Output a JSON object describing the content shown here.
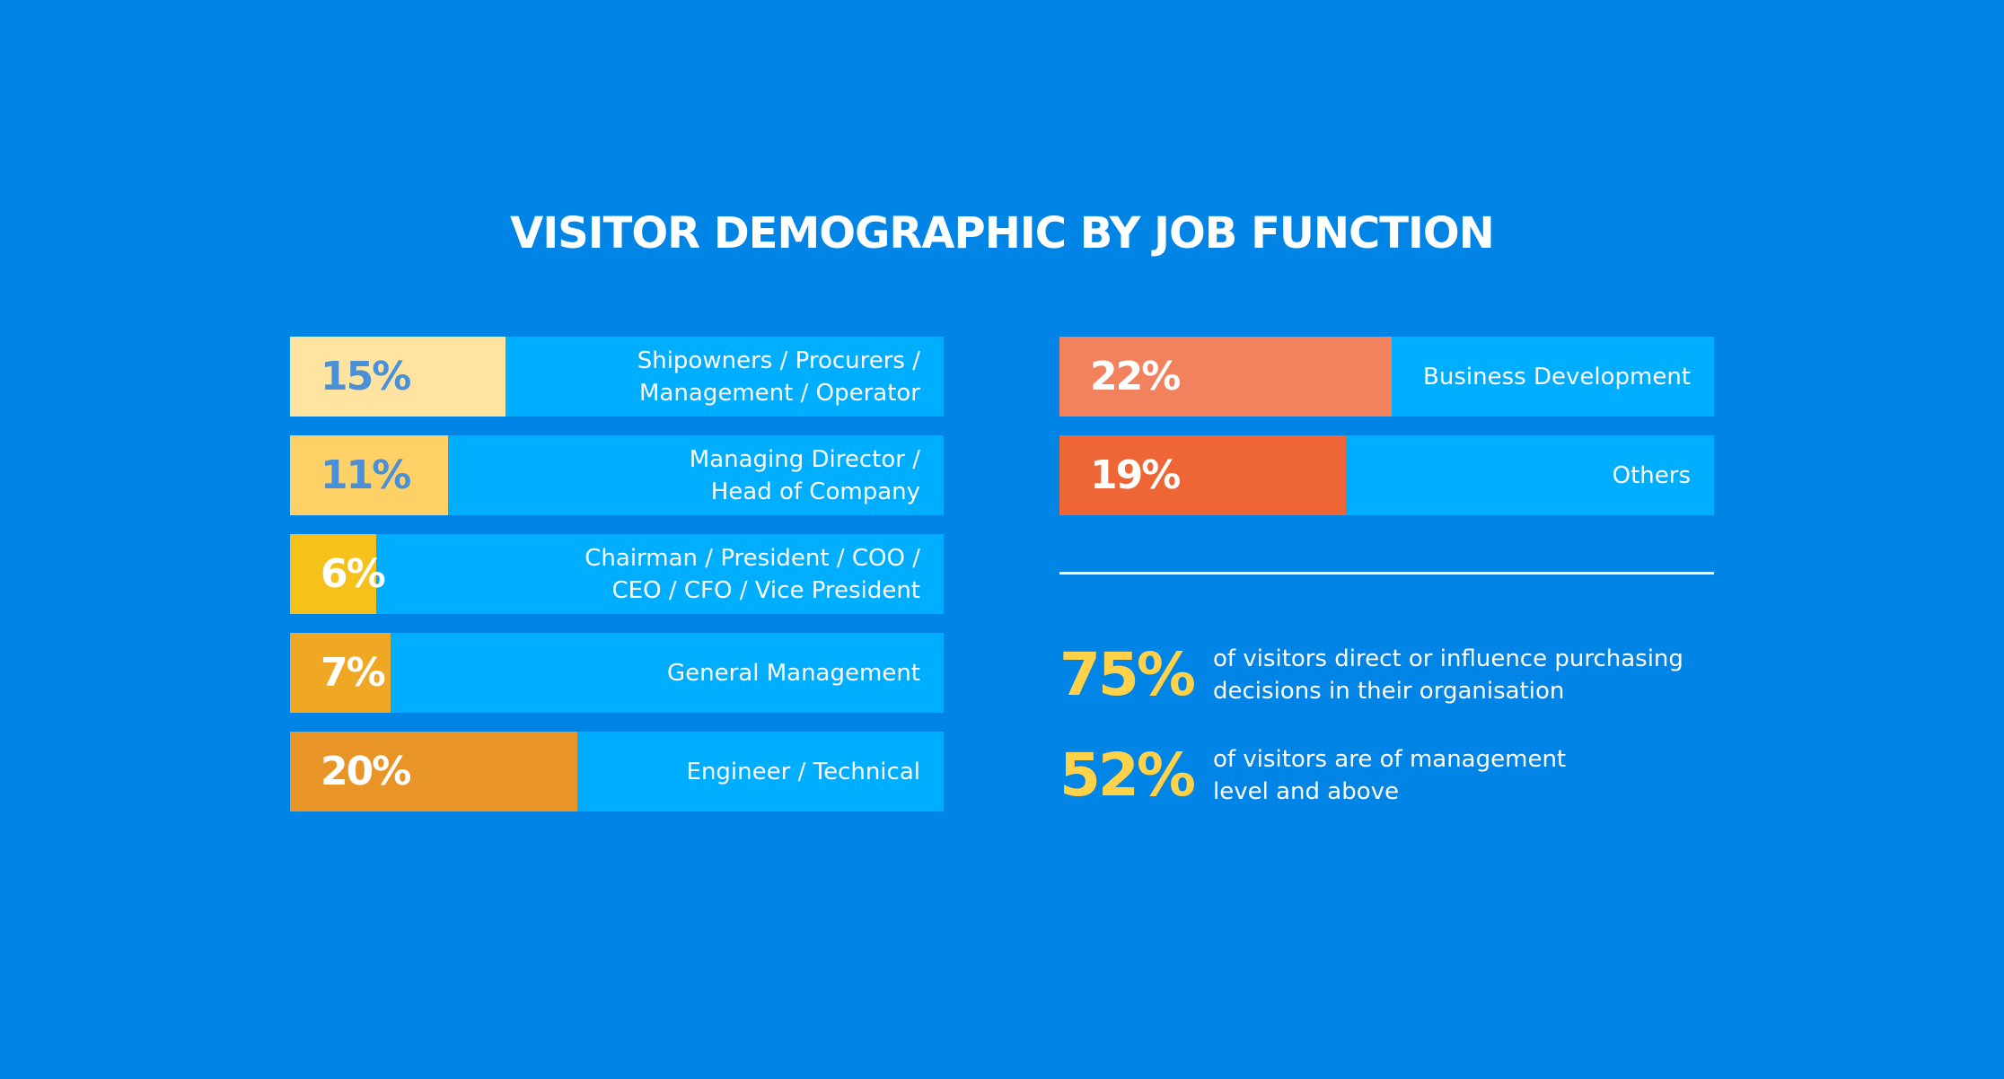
{
  "title": "VISITOR DEMOGRAPHIC BY JOB FUNCTION",
  "colors": {
    "background": "#0084E6",
    "bar_track": "#00AEFF",
    "stat_value": "#FFD24A",
    "text": "#FFFFFF"
  },
  "chart_data": {
    "type": "bar",
    "title": "VISITOR DEMOGRAPHIC BY JOB FUNCTION",
    "orientation": "horizontal",
    "unit": "%",
    "xlim": [
      0,
      100
    ],
    "categories": [
      "Shipowners / Procurers / Management / Operator",
      "Managing Director / Head of Company",
      "Chairman / President / COO / CEO / CFO / Vice President",
      "General Management",
      "Engineer / Technical",
      "Business Development",
      "Others"
    ],
    "values": [
      15,
      11,
      6,
      7,
      20,
      22,
      19
    ],
    "bars": [
      {
        "value": 15,
        "percent_label": "15%",
        "label": "Shipowners / Procurers /\nManagement / Operator",
        "color": "#FFE3A0",
        "text_color": "#4A90D9",
        "column": "left"
      },
      {
        "value": 11,
        "percent_label": "11%",
        "label": "Managing Director /\nHead of Company",
        "color": "#FDD166",
        "text_color": "#4A90D9",
        "column": "left"
      },
      {
        "value": 6,
        "percent_label": "6%",
        "label": "Chairman / President / COO /\nCEO / CFO / Vice President",
        "color": "#F5C11A",
        "text_color": "#FFFFFF",
        "column": "left"
      },
      {
        "value": 7,
        "percent_label": "7%",
        "label": "General Management",
        "color": "#F0A724",
        "text_color": "#FFFFFF",
        "column": "left"
      },
      {
        "value": 20,
        "percent_label": "20%",
        "label": "Engineer / Technical",
        "color": "#E99426",
        "text_color": "#FFFFFF",
        "column": "left"
      },
      {
        "value": 22,
        "percent_label": "22%",
        "label": "Business Development",
        "color": "#F2825D",
        "text_color": "#FFFFFF",
        "column": "right"
      },
      {
        "value": 19,
        "percent_label": "19%",
        "label": "Others",
        "color": "#EE6636",
        "text_color": "#FFFFFF",
        "column": "right"
      }
    ]
  },
  "stats": [
    {
      "value": "75%",
      "text": "of visitors direct or influence purchasing\ndecisions in their organisation"
    },
    {
      "value": "52%",
      "text": "of visitors are of management\nlevel and above"
    }
  ]
}
